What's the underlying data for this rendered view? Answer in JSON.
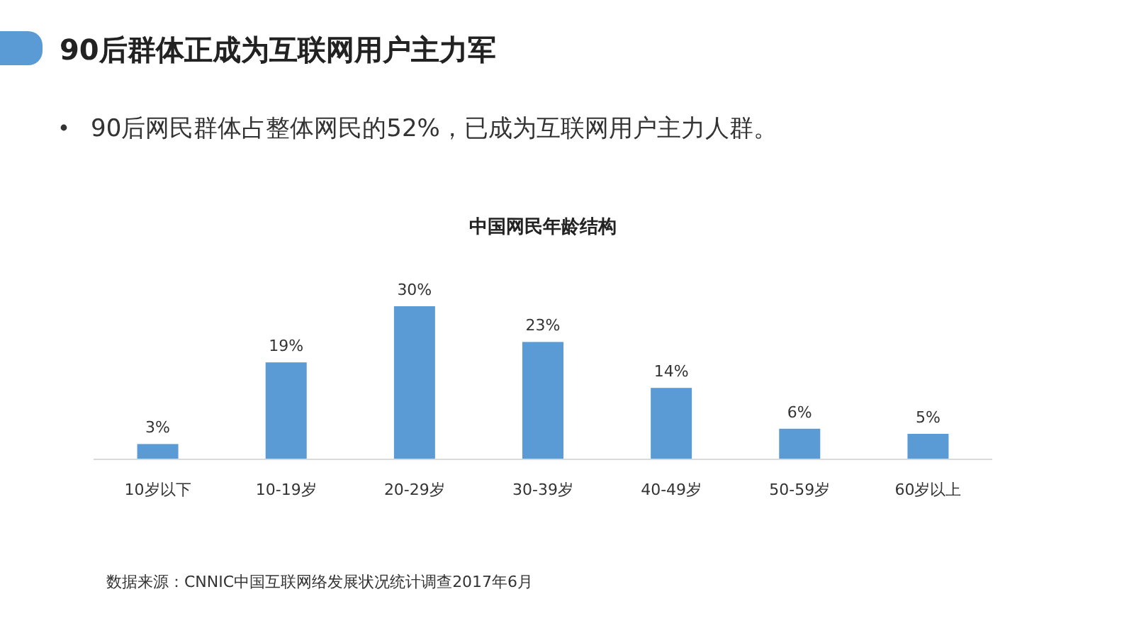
{
  "chart_data": {
    "type": "bar",
    "title": "中国网民年龄结构",
    "annotations": [
      "90后群体正成为互联网用户主力军",
      "90后网民群体占整体网民的52%，已成为互联网用户主力人群。",
      "数据来源：CNNIC中国互联网络发展状况统计调查2017年6月"
    ],
    "categories": [
      "10岁以下",
      "10-19岁",
      "20-29岁",
      "30-39岁",
      "40-49岁",
      "50-59岁",
      "60岁以上"
    ],
    "values": [
      3,
      19,
      30,
      23,
      14,
      6,
      5
    ],
    "value_labels": [
      "3%",
      "19%",
      "30%",
      "23%",
      "14%",
      "6%",
      "5%"
    ],
    "color": "#5b9bd5"
  }
}
